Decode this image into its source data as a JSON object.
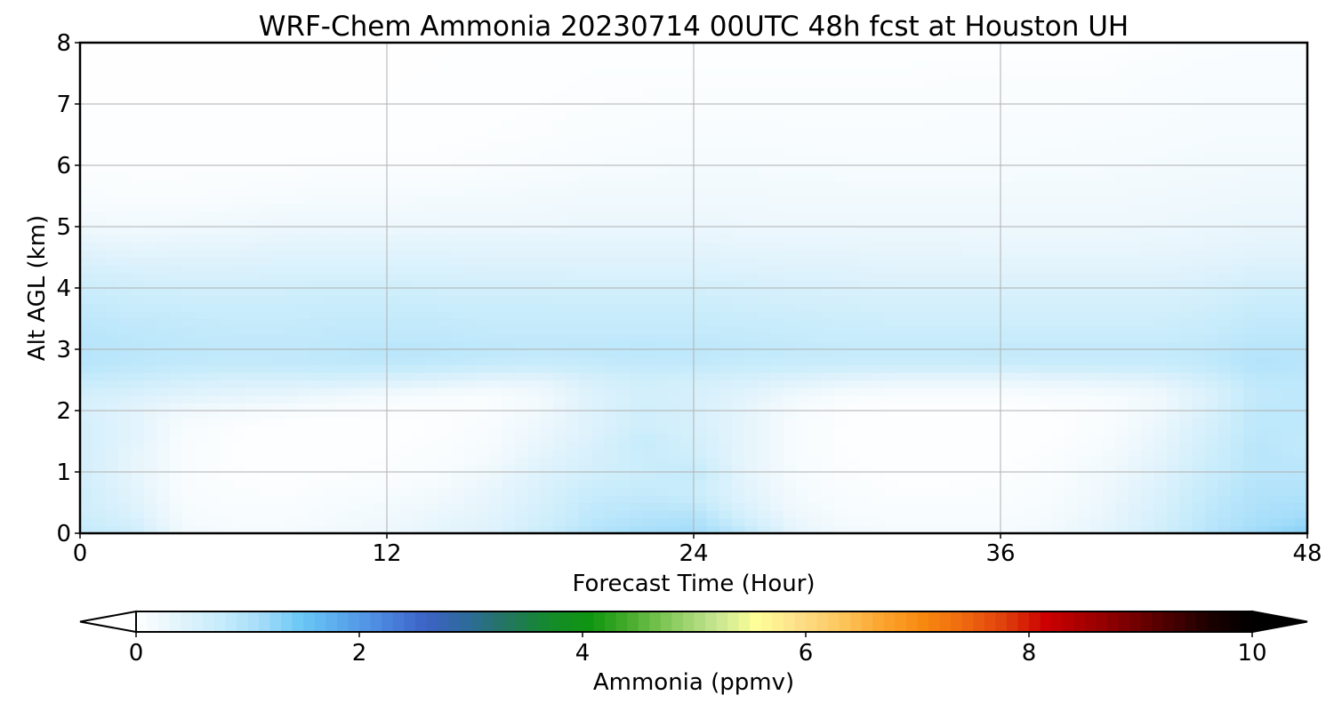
{
  "chart_data": {
    "type": "heatmap",
    "title": "WRF-Chem Ammonia  20230714 00UTC 48h fcst at Houston UH",
    "xlabel": "Forecast Time (Hour)",
    "ylabel": "Alt AGL (km)",
    "xlim": [
      0,
      48
    ],
    "ylim": [
      0,
      8
    ],
    "x_ticks": [
      0,
      12,
      24,
      36,
      48
    ],
    "y_ticks": [
      0,
      1,
      2,
      3,
      4,
      5,
      6,
      7,
      8
    ],
    "grid": true,
    "colorbar": {
      "label": "Ammonia  (ppmv)",
      "range": [
        0,
        10
      ],
      "ticks": [
        0,
        2,
        4,
        6,
        8,
        10
      ],
      "extend": "both",
      "colors": [
        "#ffffff",
        "#e4f4fc",
        "#c8ecfb",
        "#a5ddfa",
        "#6ac7f5",
        "#5aa8ec",
        "#4b86de",
        "#3c63c7",
        "#2e6a9a",
        "#23765e",
        "#148a2a",
        "#109610",
        "#4cae30",
        "#8ccc60",
        "#c4e490",
        "#ffff99",
        "#fde08a",
        "#fcc860",
        "#fba530",
        "#f88a10",
        "#ef6a0f",
        "#e0400c",
        "#cc0000",
        "#a50000",
        "#7a0000",
        "#4a0000",
        "#1a0000",
        "#000000"
      ]
    },
    "x": [
      0,
      2,
      4,
      6,
      8,
      10,
      12,
      14,
      16,
      18,
      20,
      22,
      24,
      26,
      28,
      30,
      32,
      34,
      36,
      38,
      40,
      42,
      44,
      46,
      48
    ],
    "y": [
      0,
      0.25,
      0.5,
      0.75,
      1,
      1.25,
      1.5,
      1.75,
      2,
      2.25,
      2.5,
      2.75,
      3,
      3.25,
      3.5,
      3.75,
      4,
      4.25,
      4.5,
      4.75,
      5,
      5.5,
      6,
      6.5,
      7,
      7.5,
      8
    ],
    "z": [
      [
        0.8,
        0.7,
        0.2,
        0.15,
        0.15,
        0.2,
        0.25,
        0.35,
        0.45,
        0.7,
        0.95,
        1.1,
        1.15,
        0.85,
        0.35,
        0.2,
        0.15,
        0.15,
        0.15,
        0.2,
        0.35,
        0.6,
        0.9,
        1.15,
        1.3
      ],
      [
        0.7,
        0.55,
        0.15,
        0.1,
        0.1,
        0.15,
        0.2,
        0.3,
        0.4,
        0.6,
        0.85,
        0.95,
        1.0,
        0.6,
        0.25,
        0.12,
        0.1,
        0.1,
        0.1,
        0.15,
        0.3,
        0.55,
        0.85,
        1.05,
        1.15
      ],
      [
        0.65,
        0.45,
        0.12,
        0.08,
        0.08,
        0.12,
        0.15,
        0.22,
        0.35,
        0.55,
        0.8,
        0.85,
        0.8,
        0.45,
        0.18,
        0.1,
        0.08,
        0.08,
        0.08,
        0.12,
        0.25,
        0.5,
        0.8,
        1.0,
        1.05
      ],
      [
        0.65,
        0.4,
        0.1,
        0.06,
        0.05,
        0.08,
        0.1,
        0.15,
        0.3,
        0.5,
        0.7,
        0.75,
        0.7,
        0.4,
        0.15,
        0.08,
        0.05,
        0.05,
        0.06,
        0.1,
        0.22,
        0.45,
        0.75,
        0.95,
        0.95
      ],
      [
        0.6,
        0.35,
        0.1,
        0.05,
        0.04,
        0.05,
        0.06,
        0.1,
        0.22,
        0.45,
        0.6,
        0.7,
        0.8,
        0.35,
        0.12,
        0.06,
        0.04,
        0.04,
        0.05,
        0.08,
        0.2,
        0.4,
        0.7,
        0.9,
        0.9
      ],
      [
        0.6,
        0.35,
        0.1,
        0.05,
        0.03,
        0.04,
        0.05,
        0.08,
        0.15,
        0.38,
        0.55,
        0.7,
        0.65,
        0.35,
        0.1,
        0.05,
        0.03,
        0.03,
        0.04,
        0.06,
        0.15,
        0.35,
        0.65,
        0.9,
        0.85
      ],
      [
        0.6,
        0.4,
        0.1,
        0.05,
        0.03,
        0.03,
        0.04,
        0.06,
        0.12,
        0.3,
        0.5,
        0.75,
        0.6,
        0.35,
        0.1,
        0.04,
        0.03,
        0.03,
        0.03,
        0.05,
        0.1,
        0.3,
        0.6,
        0.9,
        0.8
      ],
      [
        0.6,
        0.4,
        0.12,
        0.06,
        0.03,
        0.03,
        0.03,
        0.05,
        0.1,
        0.25,
        0.45,
        0.65,
        0.55,
        0.35,
        0.1,
        0.04,
        0.02,
        0.02,
        0.02,
        0.04,
        0.08,
        0.25,
        0.55,
        0.85,
        0.85
      ],
      [
        0.55,
        0.4,
        0.2,
        0.15,
        0.1,
        0.08,
        0.06,
        0.06,
        0.08,
        0.2,
        0.45,
        0.65,
        0.55,
        0.35,
        0.12,
        0.05,
        0.03,
        0.03,
        0.03,
        0.05,
        0.08,
        0.2,
        0.5,
        0.85,
        0.85
      ],
      [
        0.6,
        0.5,
        0.4,
        0.35,
        0.3,
        0.22,
        0.15,
        0.1,
        0.08,
        0.18,
        0.45,
        0.6,
        0.55,
        0.4,
        0.2,
        0.1,
        0.08,
        0.08,
        0.08,
        0.1,
        0.12,
        0.2,
        0.45,
        0.8,
        0.85
      ],
      [
        0.75,
        0.7,
        0.6,
        0.55,
        0.55,
        0.55,
        0.5,
        0.45,
        0.35,
        0.35,
        0.55,
        0.65,
        0.6,
        0.55,
        0.45,
        0.35,
        0.3,
        0.3,
        0.3,
        0.32,
        0.35,
        0.4,
        0.6,
        0.85,
        0.85
      ],
      [
        0.9,
        0.85,
        0.8,
        0.78,
        0.8,
        0.82,
        0.82,
        0.8,
        0.75,
        0.72,
        0.75,
        0.8,
        0.8,
        0.75,
        0.72,
        0.7,
        0.7,
        0.7,
        0.7,
        0.72,
        0.72,
        0.72,
        0.8,
        0.95,
        0.9
      ],
      [
        0.92,
        0.88,
        0.85,
        0.82,
        0.82,
        0.85,
        0.9,
        0.88,
        0.85,
        0.82,
        0.85,
        0.88,
        0.85,
        0.82,
        0.8,
        0.78,
        0.78,
        0.78,
        0.8,
        0.8,
        0.8,
        0.8,
        0.82,
        0.92,
        0.9
      ],
      [
        0.9,
        0.85,
        0.82,
        0.8,
        0.8,
        0.82,
        0.82,
        0.82,
        0.8,
        0.8,
        0.8,
        0.8,
        0.8,
        0.78,
        0.75,
        0.72,
        0.72,
        0.72,
        0.72,
        0.72,
        0.72,
        0.72,
        0.75,
        0.85,
        0.85
      ],
      [
        0.85,
        0.8,
        0.78,
        0.75,
        0.75,
        0.78,
        0.78,
        0.78,
        0.75,
        0.75,
        0.75,
        0.75,
        0.75,
        0.72,
        0.7,
        0.68,
        0.65,
        0.65,
        0.65,
        0.65,
        0.65,
        0.65,
        0.7,
        0.8,
        0.8
      ],
      [
        0.78,
        0.72,
        0.7,
        0.7,
        0.7,
        0.72,
        0.72,
        0.7,
        0.7,
        0.7,
        0.68,
        0.68,
        0.68,
        0.65,
        0.62,
        0.6,
        0.58,
        0.58,
        0.58,
        0.58,
        0.58,
        0.58,
        0.62,
        0.72,
        0.72
      ],
      [
        0.7,
        0.65,
        0.62,
        0.62,
        0.62,
        0.65,
        0.65,
        0.62,
        0.62,
        0.6,
        0.6,
        0.6,
        0.6,
        0.58,
        0.55,
        0.52,
        0.5,
        0.5,
        0.5,
        0.5,
        0.5,
        0.5,
        0.55,
        0.62,
        0.62
      ],
      [
        0.6,
        0.55,
        0.52,
        0.52,
        0.55,
        0.55,
        0.55,
        0.55,
        0.52,
        0.52,
        0.5,
        0.5,
        0.5,
        0.48,
        0.45,
        0.45,
        0.42,
        0.42,
        0.42,
        0.42,
        0.42,
        0.42,
        0.45,
        0.52,
        0.52
      ],
      [
        0.48,
        0.42,
        0.42,
        0.42,
        0.45,
        0.45,
        0.45,
        0.45,
        0.42,
        0.42,
        0.42,
        0.42,
        0.42,
        0.4,
        0.38,
        0.38,
        0.35,
        0.35,
        0.35,
        0.35,
        0.35,
        0.35,
        0.38,
        0.42,
        0.42
      ],
      [
        0.35,
        0.3,
        0.32,
        0.32,
        0.35,
        0.35,
        0.35,
        0.35,
        0.35,
        0.35,
        0.35,
        0.35,
        0.35,
        0.32,
        0.32,
        0.3,
        0.3,
        0.3,
        0.28,
        0.28,
        0.28,
        0.3,
        0.32,
        0.35,
        0.35
      ],
      [
        0.22,
        0.18,
        0.2,
        0.22,
        0.25,
        0.25,
        0.25,
        0.25,
        0.25,
        0.25,
        0.28,
        0.28,
        0.28,
        0.26,
        0.25,
        0.25,
        0.24,
        0.24,
        0.24,
        0.24,
        0.24,
        0.25,
        0.28,
        0.3,
        0.3
      ],
      [
        0.1,
        0.08,
        0.08,
        0.1,
        0.12,
        0.14,
        0.14,
        0.15,
        0.16,
        0.18,
        0.2,
        0.2,
        0.2,
        0.2,
        0.18,
        0.18,
        0.18,
        0.18,
        0.18,
        0.18,
        0.18,
        0.2,
        0.22,
        0.24,
        0.24
      ],
      [
        0.05,
        0.05,
        0.05,
        0.05,
        0.05,
        0.06,
        0.06,
        0.06,
        0.08,
        0.1,
        0.12,
        0.13,
        0.14,
        0.14,
        0.13,
        0.12,
        0.12,
        0.12,
        0.12,
        0.13,
        0.14,
        0.15,
        0.17,
        0.18,
        0.18
      ],
      [
        0.03,
        0.03,
        0.03,
        0.03,
        0.03,
        0.03,
        0.03,
        0.04,
        0.05,
        0.06,
        0.08,
        0.09,
        0.1,
        0.1,
        0.09,
        0.09,
        0.09,
        0.09,
        0.1,
        0.1,
        0.11,
        0.12,
        0.14,
        0.14,
        0.14
      ],
      [
        0.02,
        0.02,
        0.02,
        0.02,
        0.02,
        0.02,
        0.02,
        0.03,
        0.04,
        0.05,
        0.06,
        0.07,
        0.07,
        0.07,
        0.07,
        0.07,
        0.07,
        0.08,
        0.08,
        0.08,
        0.09,
        0.1,
        0.12,
        0.12,
        0.12
      ],
      [
        0.02,
        0.02,
        0.02,
        0.02,
        0.02,
        0.02,
        0.02,
        0.02,
        0.03,
        0.04,
        0.05,
        0.05,
        0.05,
        0.05,
        0.05,
        0.05,
        0.05,
        0.06,
        0.06,
        0.06,
        0.06,
        0.08,
        0.1,
        0.1,
        0.1
      ],
      [
        0.02,
        0.02,
        0.02,
        0.02,
        0.02,
        0.02,
        0.02,
        0.02,
        0.02,
        0.03,
        0.04,
        0.04,
        0.04,
        0.04,
        0.04,
        0.04,
        0.04,
        0.04,
        0.04,
        0.04,
        0.04,
        0.05,
        0.07,
        0.08,
        0.08
      ]
    ]
  }
}
